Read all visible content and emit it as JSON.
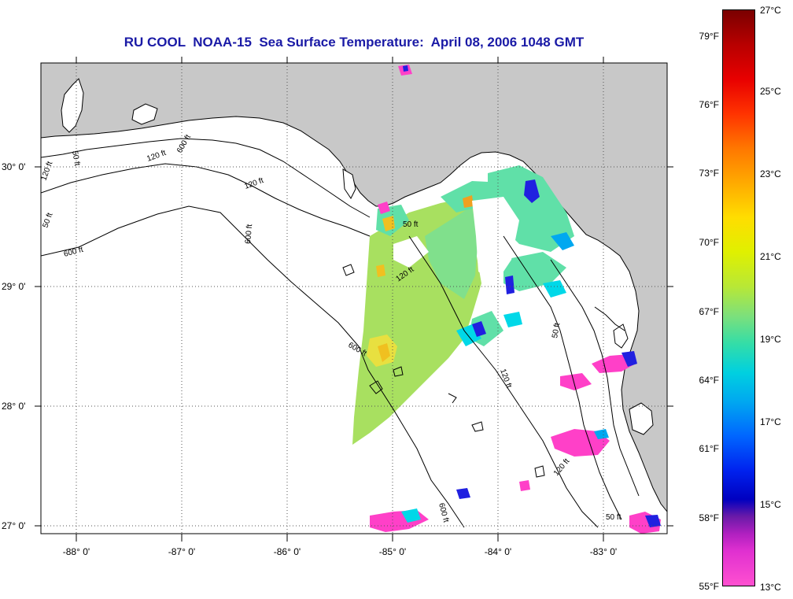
{
  "title": "RU COOL  NOAA-15  Sea Surface Temperature:  April 08, 2006 1048 GMT",
  "lat_labels": [
    "30° 0'",
    "29° 0'",
    "28° 0'",
    "27° 0'"
  ],
  "lon_labels": [
    "-88° 0'",
    "-87° 0'",
    "-86° 0'",
    "-85° 0'",
    "-84° 0'",
    "-83° 0'"
  ],
  "contour_labels": [
    "50 ft",
    "120 ft",
    "600 ft",
    "120 ft",
    "600 ft",
    "50 ft",
    "50 ft",
    "120 ft",
    "600 ft",
    "120 ft",
    "120 ft",
    "50 ft",
    "600 ft",
    "120 ft",
    "50 ft",
    "600 ft"
  ],
  "colorbar": {
    "fahrenheit": [
      "79°F",
      "76°F",
      "73°F",
      "70°F",
      "67°F",
      "64°F",
      "61°F",
      "58°F",
      "55°F"
    ],
    "celsius": [
      "27°C",
      "25°C",
      "23°C",
      "21°C",
      "19°C",
      "17°C",
      "15°C",
      "13°C"
    ]
  },
  "colors": {
    "title": "#1a1aa6",
    "land": "#c8c8c8",
    "water": "#ffffff",
    "sst_warm": "#f0c020",
    "sst_mid": "#a8e060",
    "sst_cool": "#60e0a8",
    "sst_cold": "#00d8e8",
    "sst_coldest": "#ff40c8"
  }
}
